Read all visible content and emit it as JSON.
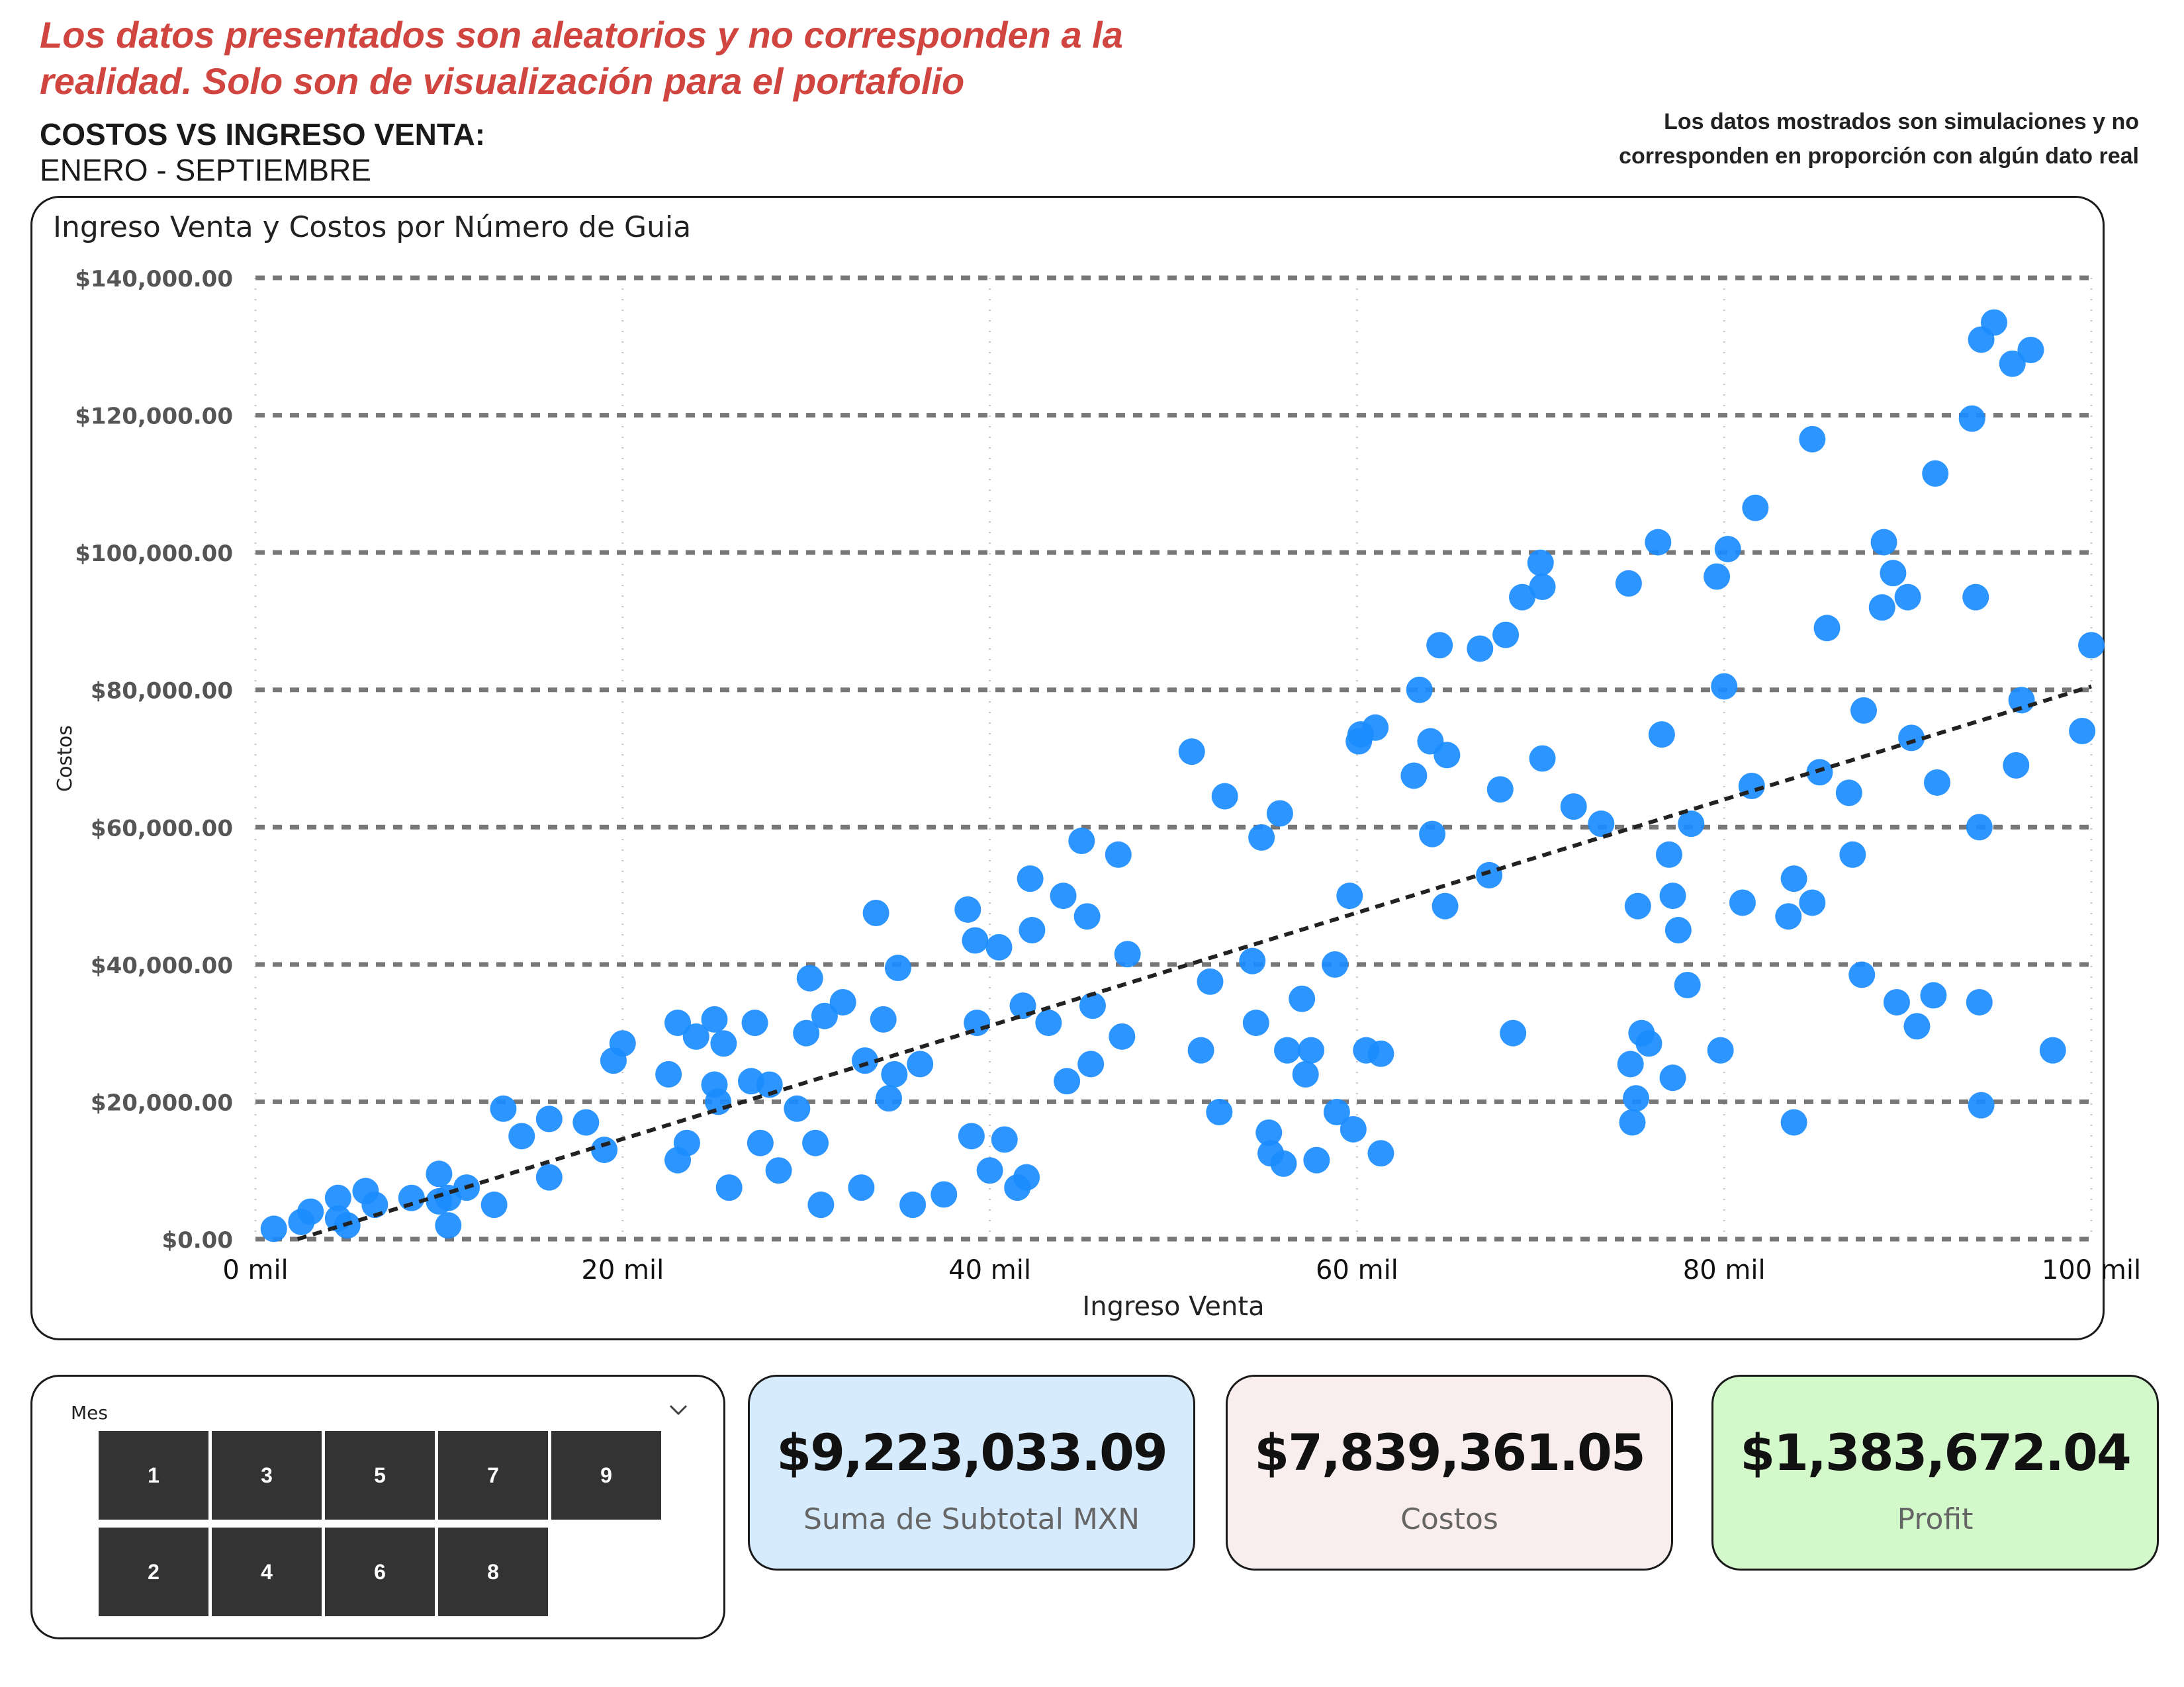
{
  "header": {
    "disclaimer_line1": "Los datos presentados son aleatorios y no corresponden a la",
    "disclaimer_line2": "realidad. Solo son de visualización para el portafolio",
    "title": "COSTOS VS INGRESO VENTA:",
    "subtitle": "ENERO - SEPTIEMBRE",
    "note_line1": "Los datos mostrados son simulaciones y no",
    "note_line2": "corresponden en proporción con algún dato real",
    "disclaimer_color": "#d0453f"
  },
  "chart_data": {
    "type": "scatter",
    "title": "Ingreso Venta y Costos por Número de Guia",
    "xlabel": "Ingreso Venta",
    "ylabel": "Costos",
    "xlim": [
      0,
      100
    ],
    "ylim": [
      0,
      140000
    ],
    "x_ticks": [
      "0 mil",
      "20 mil",
      "40 mil",
      "60 mil",
      "80 mil",
      "100 mil"
    ],
    "x_tick_values": [
      0,
      20,
      40,
      60,
      80,
      100
    ],
    "y_ticks": [
      "$0.00",
      "$20,000.00",
      "$40,000.00",
      "$60,000.00",
      "$80,000.00",
      "$100,000.00",
      "$120,000.00",
      "$140,000.00"
    ],
    "y_tick_values": [
      0,
      20000,
      40000,
      60000,
      80000,
      100000,
      120000,
      140000
    ],
    "point_color": "#1a8cff",
    "trend_line": {
      "x": [
        2.3,
        100
      ],
      "y": [
        0,
        80500
      ],
      "style": "dashed",
      "color": "#222222"
    },
    "points": [
      [
        1,
        1500
      ],
      [
        2.5,
        2500
      ],
      [
        3,
        4000
      ],
      [
        4.5,
        3000
      ],
      [
        4.5,
        6000
      ],
      [
        5,
        2000
      ],
      [
        6,
        7000
      ],
      [
        6.5,
        5000
      ],
      [
        8.5,
        6000
      ],
      [
        10,
        5500
      ],
      [
        10,
        9500
      ],
      [
        10.5,
        6000
      ],
      [
        10.5,
        2000
      ],
      [
        11.5,
        7500
      ],
      [
        13,
        5000
      ],
      [
        13.5,
        19000
      ],
      [
        14.5,
        15000
      ],
      [
        16,
        17500
      ],
      [
        16,
        9000
      ],
      [
        18,
        17000
      ],
      [
        19,
        13000
      ],
      [
        19.5,
        26000
      ],
      [
        20,
        28500
      ],
      [
        22.5,
        24000
      ],
      [
        23,
        11500
      ],
      [
        23,
        31500
      ],
      [
        23.5,
        14000
      ],
      [
        24,
        29500
      ],
      [
        25,
        32000
      ],
      [
        25,
        22500
      ],
      [
        25.2,
        20000
      ],
      [
        25.5,
        28500
      ],
      [
        25.8,
        7500
      ],
      [
        27,
        23000
      ],
      [
        27.2,
        31500
      ],
      [
        27.5,
        14000
      ],
      [
        28,
        22500
      ],
      [
        28.5,
        10000
      ],
      [
        29.5,
        19000
      ],
      [
        30,
        30000
      ],
      [
        30.2,
        38000
      ],
      [
        30.5,
        14000
      ],
      [
        30.8,
        5000
      ],
      [
        31,
        32500
      ],
      [
        32,
        34500
      ],
      [
        33,
        7500
      ],
      [
        33.2,
        26000
      ],
      [
        33.8,
        47500
      ],
      [
        34.2,
        32000
      ],
      [
        34.5,
        20500
      ],
      [
        34.8,
        24000
      ],
      [
        35,
        39500
      ],
      [
        35.8,
        5000
      ],
      [
        36.2,
        25500
      ],
      [
        37.5,
        6500
      ],
      [
        38.8,
        48000
      ],
      [
        39,
        15000
      ],
      [
        39.2,
        43500
      ],
      [
        39.3,
        31500
      ],
      [
        40,
        10000
      ],
      [
        40.5,
        42500
      ],
      [
        40.8,
        14500
      ],
      [
        41.5,
        7500
      ],
      [
        41.8,
        34000
      ],
      [
        42,
        9000
      ],
      [
        42.2,
        52500
      ],
      [
        42.3,
        45000
      ],
      [
        43.2,
        31500
      ],
      [
        44,
        50000
      ],
      [
        44.2,
        23000
      ],
      [
        45,
        58000
      ],
      [
        45.3,
        47000
      ],
      [
        45.5,
        25500
      ],
      [
        45.6,
        34000
      ],
      [
        47,
        56000
      ],
      [
        47.2,
        29500
      ],
      [
        47.5,
        41500
      ],
      [
        51,
        71000
      ],
      [
        51.5,
        27500
      ],
      [
        52,
        37500
      ],
      [
        52.5,
        18500
      ],
      [
        52.8,
        64500
      ],
      [
        54.3,
        40500
      ],
      [
        54.5,
        31500
      ],
      [
        54.8,
        58500
      ],
      [
        55.2,
        15500
      ],
      [
        55.3,
        12500
      ],
      [
        55.8,
        62000
      ],
      [
        56,
        11000
      ],
      [
        56.2,
        27500
      ],
      [
        57,
        35000
      ],
      [
        57.2,
        24000
      ],
      [
        57.5,
        27500
      ],
      [
        57.8,
        11500
      ],
      [
        58.8,
        40000
      ],
      [
        58.9,
        18500
      ],
      [
        59.6,
        50000
      ],
      [
        59.8,
        16000
      ],
      [
        60.1,
        72500
      ],
      [
        60.2,
        73500
      ],
      [
        60.5,
        27500
      ],
      [
        61,
        74500
      ],
      [
        61.3,
        27000
      ],
      [
        61.3,
        12500
      ],
      [
        63.1,
        67500
      ],
      [
        63.4,
        80000
      ],
      [
        64,
        72500
      ],
      [
        64.1,
        59000
      ],
      [
        64.5,
        86500
      ],
      [
        64.8,
        48500
      ],
      [
        64.9,
        70500
      ],
      [
        66.7,
        86000
      ],
      [
        67.2,
        53000
      ],
      [
        67.8,
        65500
      ],
      [
        68.1,
        88000
      ],
      [
        68.5,
        30000
      ],
      [
        69,
        93500
      ],
      [
        70,
        98500
      ],
      [
        70.1,
        95000
      ],
      [
        70.1,
        70000
      ],
      [
        71.8,
        63000
      ],
      [
        73.3,
        60500
      ],
      [
        74.8,
        95500
      ],
      [
        74.9,
        25500
      ],
      [
        75,
        17000
      ],
      [
        75.2,
        20500
      ],
      [
        75.3,
        48500
      ],
      [
        75.5,
        30000
      ],
      [
        75.9,
        28500
      ],
      [
        76.4,
        101500
      ],
      [
        76.6,
        73500
      ],
      [
        77,
        56000
      ],
      [
        77.2,
        50000
      ],
      [
        77.2,
        23500
      ],
      [
        77.5,
        45000
      ],
      [
        78,
        37000
      ],
      [
        78.2,
        60500
      ],
      [
        79.6,
        96500
      ],
      [
        79.8,
        27500
      ],
      [
        80,
        80500
      ],
      [
        80.2,
        100500
      ],
      [
        81,
        49000
      ],
      [
        81.5,
        66000
      ],
      [
        81.7,
        106500
      ],
      [
        83.5,
        47000
      ],
      [
        83.8,
        52500
      ],
      [
        83.8,
        17000
      ],
      [
        84.8,
        116500
      ],
      [
        84.8,
        49000
      ],
      [
        85.2,
        68000
      ],
      [
        85.6,
        89000
      ],
      [
        86.8,
        65000
      ],
      [
        87,
        56000
      ],
      [
        87.5,
        38500
      ],
      [
        87.6,
        77000
      ],
      [
        88.6,
        92000
      ],
      [
        88.7,
        101500
      ],
      [
        89.2,
        97000
      ],
      [
        89.4,
        34500
      ],
      [
        90,
        93500
      ],
      [
        90.2,
        73000
      ],
      [
        90.5,
        31000
      ],
      [
        91.4,
        35500
      ],
      [
        91.5,
        111500
      ],
      [
        91.6,
        66500
      ],
      [
        93.5,
        119500
      ],
      [
        93.7,
        93500
      ],
      [
        93.9,
        60000
      ],
      [
        93.9,
        34500
      ],
      [
        94,
        19500
      ],
      [
        94,
        131000
      ],
      [
        94.7,
        133500
      ],
      [
        95.7,
        127500
      ],
      [
        95.9,
        69000
      ],
      [
        96.2,
        78500
      ],
      [
        96.7,
        129500
      ],
      [
        97.9,
        27500
      ],
      [
        99.5,
        74000
      ],
      [
        100,
        86500
      ]
    ]
  },
  "slicer": {
    "label": "Mes",
    "row1": [
      "1",
      "3",
      "5",
      "7",
      "9"
    ],
    "row2": [
      "2",
      "4",
      "6",
      "8"
    ],
    "button_color": "#333333"
  },
  "kpis": [
    {
      "value": "$9,223,033.09",
      "label": "Suma de Subtotal MXN",
      "color": "#d6ebfd"
    },
    {
      "value": "$7,839,361.05",
      "label": "Costos",
      "color": "#f9eded"
    },
    {
      "value": "$1,383,672.04",
      "label": "Profit",
      "color": "#d3f9cb"
    }
  ]
}
